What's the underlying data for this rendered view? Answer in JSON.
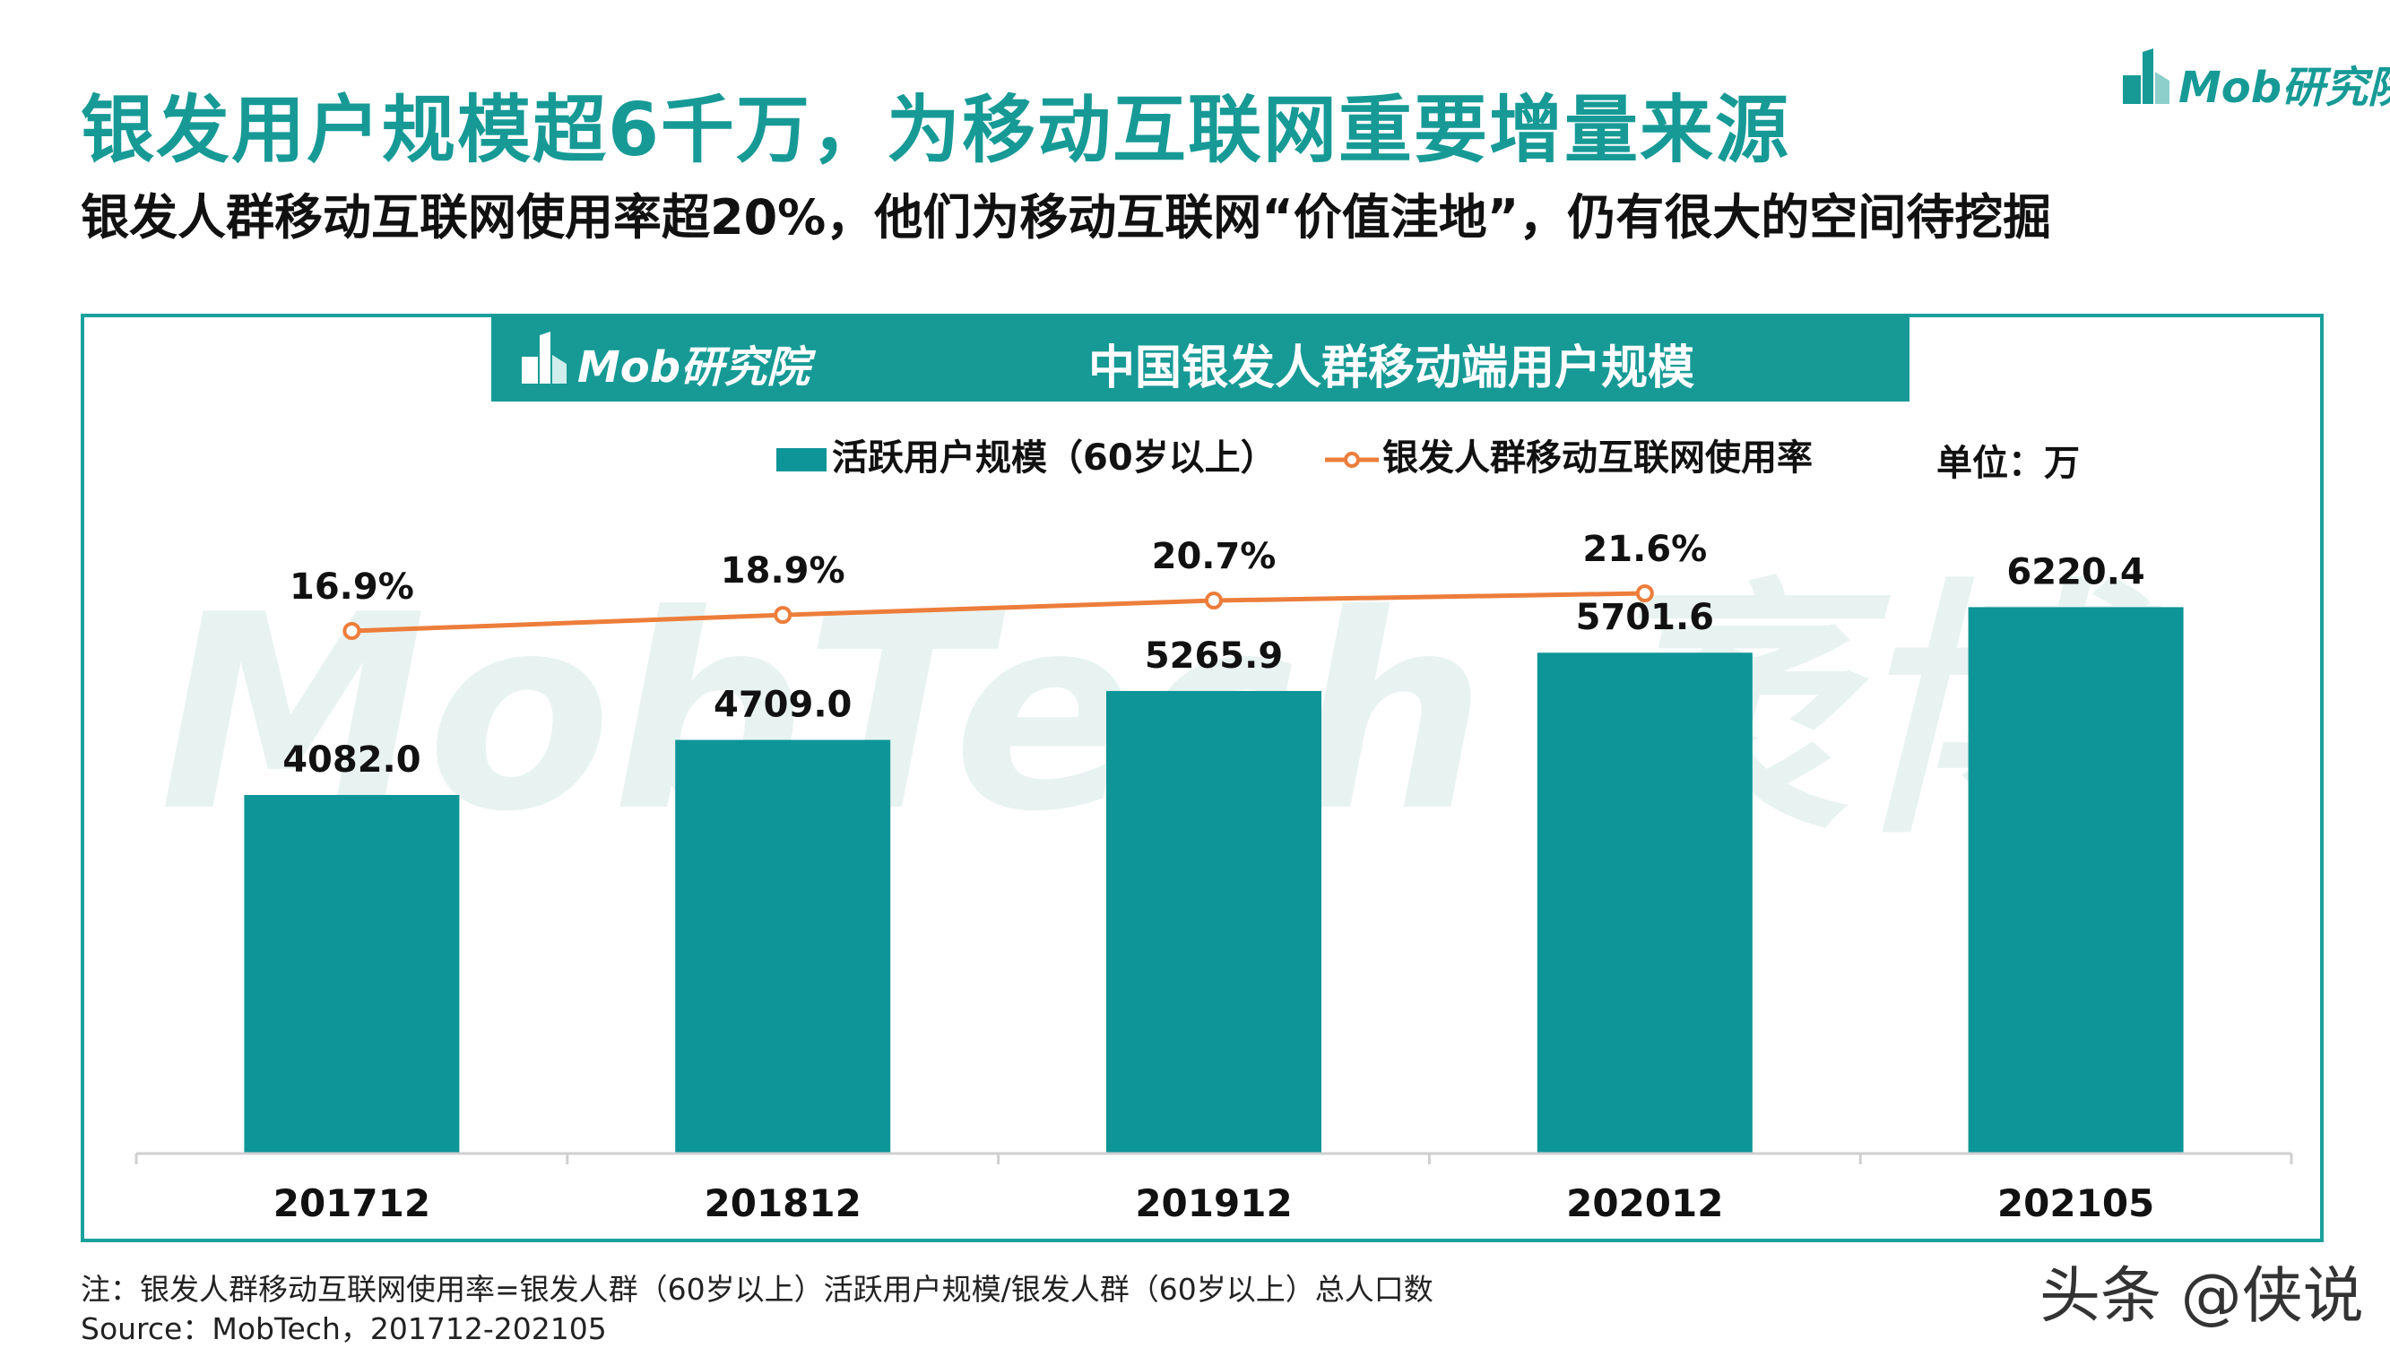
{
  "page": {
    "title": "银发用户规模超6千万，为移动互联网重要增量来源",
    "subtitle": "银发人群移动互联网使用率超20%，他们为移动互联网“价值洼地”，仍有很大的空间待挖掘",
    "brand": "Mob研究院",
    "note": "注：银发人群移动互联网使用率=银发人群（60岁以上）活跃用户规模/银发人群（60岁以上）总人口数",
    "source": "Source：MobTech，201712-202105",
    "credit": "头条 @侠说",
    "watermark": "MobTech 袤博"
  },
  "colors": {
    "accent": "#179a96",
    "bar": "#0d9598",
    "line": "#ed7d3a",
    "watermark": "#e8f3f1"
  },
  "chart_data": {
    "type": "bar",
    "title": "中国银发人群移动端用户规模",
    "unit_label": "单位：万",
    "categories": [
      "201712",
      "201812",
      "201912",
      "202012",
      "202105"
    ],
    "series": [
      {
        "name": "活跃用户规模（60岁以上）",
        "type": "bar",
        "values": [
          4082.0,
          4709.0,
          5265.9,
          5701.6,
          6220.4
        ]
      },
      {
        "name": "银发人群移动互联网使用率",
        "type": "line",
        "values": [
          16.9,
          18.9,
          20.7,
          21.6,
          null
        ],
        "unit": "%"
      }
    ],
    "bar_labels": [
      "4082.0",
      "4709.0",
      "5265.9",
      "5701.6",
      "6220.4"
    ],
    "line_labels": [
      "16.9%",
      "18.9%",
      "20.7%",
      "21.6%"
    ],
    "ylim": [
      0,
      10000
    ],
    "line_ylim": [
      0,
      45
    ],
    "legend": "top-center",
    "grid": false
  }
}
